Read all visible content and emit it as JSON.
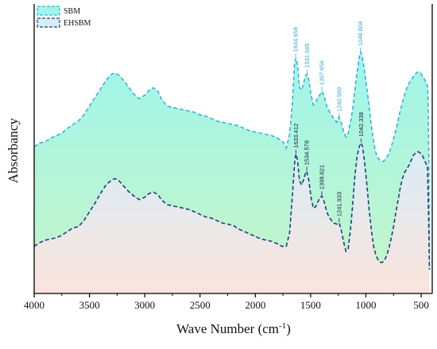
{
  "chart_data": {
    "type": "area",
    "title": "",
    "xlabel": "Wave Number (cm",
    "xlabel_sup": "-1",
    "xlabel_close": ")",
    "ylabel": "Absorbancy",
    "x_reversed": true,
    "xlim": [
      4000,
      400
    ],
    "x_ticks": [
      4000,
      3500,
      3000,
      2500,
      2000,
      1500,
      1000,
      500
    ],
    "y_ticks_shown": false,
    "grid": false,
    "legend_position": "top-left",
    "colors": {
      "sbm_line": "#33b3e0",
      "sbm_fill_top": "#9ff5ea",
      "sbm_fill_bottom": "#c8f5c8",
      "ehsbm_line": "#1f3d7a",
      "ehsbm_fill_top": "#d6eef8",
      "ehsbm_fill_bottom": "#fbe3dc",
      "sbm_label": "#33a6d6",
      "ehsbm_label": "#0d1f40"
    },
    "series": [
      {
        "name": "SBM",
        "key": "sbm",
        "points": [
          [
            4000,
            0.5
          ],
          [
            3950,
            0.515
          ],
          [
            3900,
            0.52
          ],
          [
            3850,
            0.535
          ],
          [
            3800,
            0.545
          ],
          [
            3750,
            0.555
          ],
          [
            3700,
            0.575
          ],
          [
            3650,
            0.59
          ],
          [
            3600,
            0.605
          ],
          [
            3550,
            0.63
          ],
          [
            3500,
            0.665
          ],
          [
            3450,
            0.7
          ],
          [
            3400,
            0.735
          ],
          [
            3350,
            0.77
          ],
          [
            3300,
            0.795
          ],
          [
            3270,
            0.8
          ],
          [
            3230,
            0.79
          ],
          [
            3200,
            0.775
          ],
          [
            3150,
            0.745
          ],
          [
            3100,
            0.715
          ],
          [
            3050,
            0.695
          ],
          [
            3000,
            0.71
          ],
          [
            2960,
            0.73
          ],
          [
            2920,
            0.74
          ],
          [
            2880,
            0.725
          ],
          [
            2850,
            0.695
          ],
          [
            2800,
            0.665
          ],
          [
            2750,
            0.66
          ],
          [
            2700,
            0.655
          ],
          [
            2650,
            0.65
          ],
          [
            2600,
            0.645
          ],
          [
            2550,
            0.64
          ],
          [
            2500,
            0.63
          ],
          [
            2450,
            0.625
          ],
          [
            2400,
            0.615
          ],
          [
            2350,
            0.605
          ],
          [
            2300,
            0.6
          ],
          [
            2250,
            0.595
          ],
          [
            2200,
            0.59
          ],
          [
            2150,
            0.585
          ],
          [
            2100,
            0.575
          ],
          [
            2050,
            0.565
          ],
          [
            2000,
            0.56
          ],
          [
            1950,
            0.555
          ],
          [
            1900,
            0.55
          ],
          [
            1850,
            0.545
          ],
          [
            1800,
            0.535
          ],
          [
            1750,
            0.52
          ],
          [
            1720,
            0.495
          ],
          [
            1690,
            0.55
          ],
          [
            1665,
            0.68
          ],
          [
            1645,
            0.835
          ],
          [
            1635,
            0.86
          ],
          [
            1620,
            0.84
          ],
          [
            1600,
            0.74
          ],
          [
            1580,
            0.73
          ],
          [
            1560,
            0.765
          ],
          [
            1545,
            0.79
          ],
          [
            1532,
            0.795
          ],
          [
            1515,
            0.77
          ],
          [
            1495,
            0.71
          ],
          [
            1475,
            0.67
          ],
          [
            1455,
            0.68
          ],
          [
            1430,
            0.705
          ],
          [
            1410,
            0.715
          ],
          [
            1398,
            0.725
          ],
          [
            1380,
            0.71
          ],
          [
            1350,
            0.66
          ],
          [
            1320,
            0.635
          ],
          [
            1290,
            0.615
          ],
          [
            1265,
            0.6
          ],
          [
            1245,
            0.62
          ],
          [
            1225,
            0.6
          ],
          [
            1200,
            0.56
          ],
          [
            1180,
            0.54
          ],
          [
            1160,
            0.555
          ],
          [
            1140,
            0.6
          ],
          [
            1120,
            0.65
          ],
          [
            1100,
            0.73
          ],
          [
            1080,
            0.8
          ],
          [
            1060,
            0.865
          ],
          [
            1048,
            0.885
          ],
          [
            1035,
            0.87
          ],
          [
            1015,
            0.82
          ],
          [
            995,
            0.75
          ],
          [
            975,
            0.68
          ],
          [
            955,
            0.6
          ],
          [
            935,
            0.535
          ],
          [
            915,
            0.485
          ],
          [
            895,
            0.455
          ],
          [
            870,
            0.445
          ],
          [
            845,
            0.44
          ],
          [
            820,
            0.45
          ],
          [
            795,
            0.47
          ],
          [
            770,
            0.5
          ],
          [
            745,
            0.54
          ],
          [
            720,
            0.585
          ],
          [
            695,
            0.635
          ],
          [
            670,
            0.68
          ],
          [
            645,
            0.72
          ],
          [
            620,
            0.75
          ],
          [
            595,
            0.77
          ],
          [
            570,
            0.785
          ],
          [
            545,
            0.8
          ],
          [
            525,
            0.805
          ],
          [
            505,
            0.8
          ],
          [
            485,
            0.785
          ],
          [
            465,
            0.77
          ],
          [
            450,
            0.755
          ],
          [
            440,
            0.745
          ],
          [
            430,
            0.45
          ],
          [
            425,
            0.0
          ]
        ]
      },
      {
        "name": "EHSBM",
        "key": "ehsbm",
        "points": [
          [
            4000,
            0.095
          ],
          [
            3950,
            0.11
          ],
          [
            3900,
            0.12
          ],
          [
            3850,
            0.125
          ],
          [
            3800,
            0.13
          ],
          [
            3750,
            0.14
          ],
          [
            3700,
            0.155
          ],
          [
            3650,
            0.17
          ],
          [
            3600,
            0.175
          ],
          [
            3550,
            0.2
          ],
          [
            3500,
            0.235
          ],
          [
            3450,
            0.27
          ],
          [
            3400,
            0.31
          ],
          [
            3350,
            0.345
          ],
          [
            3300,
            0.365
          ],
          [
            3270,
            0.37
          ],
          [
            3230,
            0.36
          ],
          [
            3200,
            0.345
          ],
          [
            3150,
            0.32
          ],
          [
            3100,
            0.3
          ],
          [
            3050,
            0.285
          ],
          [
            3000,
            0.295
          ],
          [
            2960,
            0.31
          ],
          [
            2920,
            0.315
          ],
          [
            2880,
            0.305
          ],
          [
            2850,
            0.285
          ],
          [
            2800,
            0.265
          ],
          [
            2750,
            0.26
          ],
          [
            2700,
            0.255
          ],
          [
            2650,
            0.25
          ],
          [
            2600,
            0.245
          ],
          [
            2550,
            0.235
          ],
          [
            2500,
            0.225
          ],
          [
            2450,
            0.215
          ],
          [
            2400,
            0.21
          ],
          [
            2350,
            0.2
          ],
          [
            2300,
            0.19
          ],
          [
            2250,
            0.185
          ],
          [
            2200,
            0.18
          ],
          [
            2150,
            0.165
          ],
          [
            2100,
            0.155
          ],
          [
            2050,
            0.145
          ],
          [
            2000,
            0.135
          ],
          [
            1950,
            0.125
          ],
          [
            1900,
            0.12
          ],
          [
            1850,
            0.115
          ],
          [
            1800,
            0.105
          ],
          [
            1760,
            0.095
          ],
          [
            1720,
            0.095
          ],
          [
            1690,
            0.15
          ],
          [
            1665,
            0.3
          ],
          [
            1645,
            0.43
          ],
          [
            1633,
            0.47
          ],
          [
            1620,
            0.45
          ],
          [
            1600,
            0.36
          ],
          [
            1580,
            0.345
          ],
          [
            1560,
            0.37
          ],
          [
            1545,
            0.395
          ],
          [
            1535,
            0.4
          ],
          [
            1515,
            0.36
          ],
          [
            1495,
            0.29
          ],
          [
            1475,
            0.25
          ],
          [
            1455,
            0.255
          ],
          [
            1430,
            0.28
          ],
          [
            1410,
            0.295
          ],
          [
            1399,
            0.3
          ],
          [
            1380,
            0.28
          ],
          [
            1350,
            0.23
          ],
          [
            1320,
            0.205
          ],
          [
            1290,
            0.19
          ],
          [
            1265,
            0.185
          ],
          [
            1242,
            0.19
          ],
          [
            1225,
            0.165
          ],
          [
            1200,
            0.11
          ],
          [
            1180,
            0.075
          ],
          [
            1160,
            0.085
          ],
          [
            1140,
            0.16
          ],
          [
            1120,
            0.26
          ],
          [
            1100,
            0.38
          ],
          [
            1080,
            0.46
          ],
          [
            1060,
            0.5
          ],
          [
            1042,
            0.515
          ],
          [
            1030,
            0.5
          ],
          [
            1010,
            0.43
          ],
          [
            990,
            0.34
          ],
          [
            970,
            0.24
          ],
          [
            950,
            0.16
          ],
          [
            930,
            0.095
          ],
          [
            910,
            0.06
          ],
          [
            890,
            0.04
          ],
          [
            870,
            0.03
          ],
          [
            850,
            0.03
          ],
          [
            830,
            0.04
          ],
          [
            810,
            0.06
          ],
          [
            790,
            0.09
          ],
          [
            770,
            0.13
          ],
          [
            750,
            0.175
          ],
          [
            730,
            0.23
          ],
          [
            710,
            0.28
          ],
          [
            690,
            0.33
          ],
          [
            670,
            0.37
          ],
          [
            650,
            0.395
          ],
          [
            630,
            0.41
          ],
          [
            610,
            0.425
          ],
          [
            590,
            0.445
          ],
          [
            570,
            0.465
          ],
          [
            550,
            0.475
          ],
          [
            530,
            0.48
          ],
          [
            510,
            0.475
          ],
          [
            490,
            0.465
          ],
          [
            470,
            0.445
          ],
          [
            455,
            0.43
          ],
          [
            443,
            0.42
          ],
          [
            432,
            0.2
          ],
          [
            425,
            0.0
          ]
        ]
      }
    ],
    "annotations": [
      {
        "series": "sbm",
        "x": 1634.658,
        "text": "1634.658"
      },
      {
        "series": "sbm",
        "x": 1531.665,
        "text": "1531.665"
      },
      {
        "series": "sbm",
        "x": 1397.656,
        "text": "1397.656"
      },
      {
        "series": "sbm",
        "x": 1240.969,
        "text": "1240.969"
      },
      {
        "series": "sbm",
        "x": 1048.604,
        "text": "1048.604"
      },
      {
        "series": "ehsbm",
        "x": 1633.412,
        "text": "1633.412"
      },
      {
        "series": "ehsbm",
        "x": 1534.578,
        "text": "1534.578"
      },
      {
        "series": "ehsbm",
        "x": 1398.621,
        "text": "1398.621"
      },
      {
        "series": "ehsbm",
        "x": 1241.933,
        "text": "1241.933"
      },
      {
        "series": "ehsbm",
        "x": 1042.338,
        "text": "1042.338"
      }
    ]
  }
}
